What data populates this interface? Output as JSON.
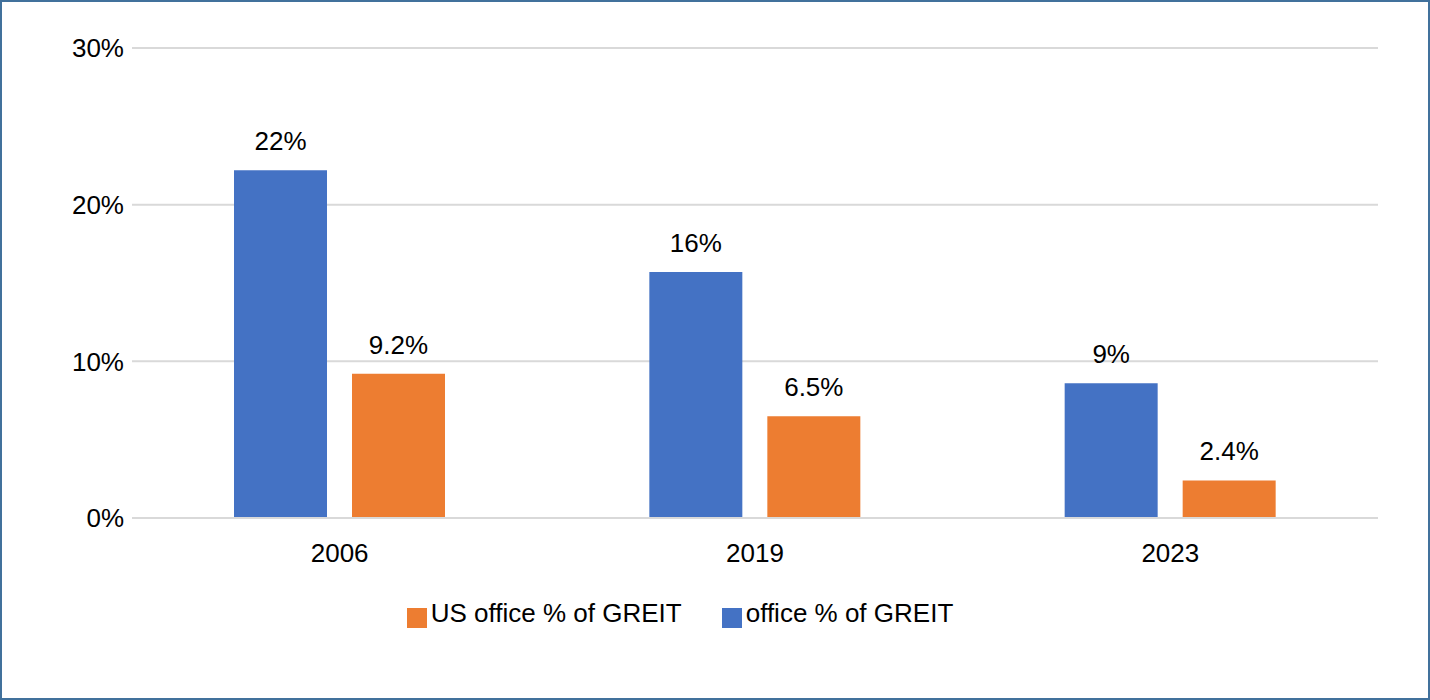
{
  "chart_data": {
    "type": "bar",
    "categories": [
      "2006",
      "2019",
      "2023"
    ],
    "series": [
      {
        "name": "office % of GREIT",
        "color": "#4472c4",
        "values": [
          22.2,
          15.7,
          8.6
        ],
        "value_labels": [
          "22%",
          "16%",
          "9%"
        ]
      },
      {
        "name": "US office % of GREIT",
        "color": "#ed7d31",
        "values": [
          9.2,
          6.5,
          2.4
        ],
        "value_labels": [
          "9.2%",
          "6.5%",
          "2.4%"
        ]
      }
    ],
    "ylim": [
      0,
      30
    ],
    "yticks": [
      {
        "value": 0,
        "label": "0%"
      },
      {
        "value": 10,
        "label": "10%"
      },
      {
        "value": 20,
        "label": "20%"
      },
      {
        "value": 30,
        "label": "30%"
      }
    ],
    "grid": true,
    "legend": "bottom",
    "data_labels": true
  }
}
